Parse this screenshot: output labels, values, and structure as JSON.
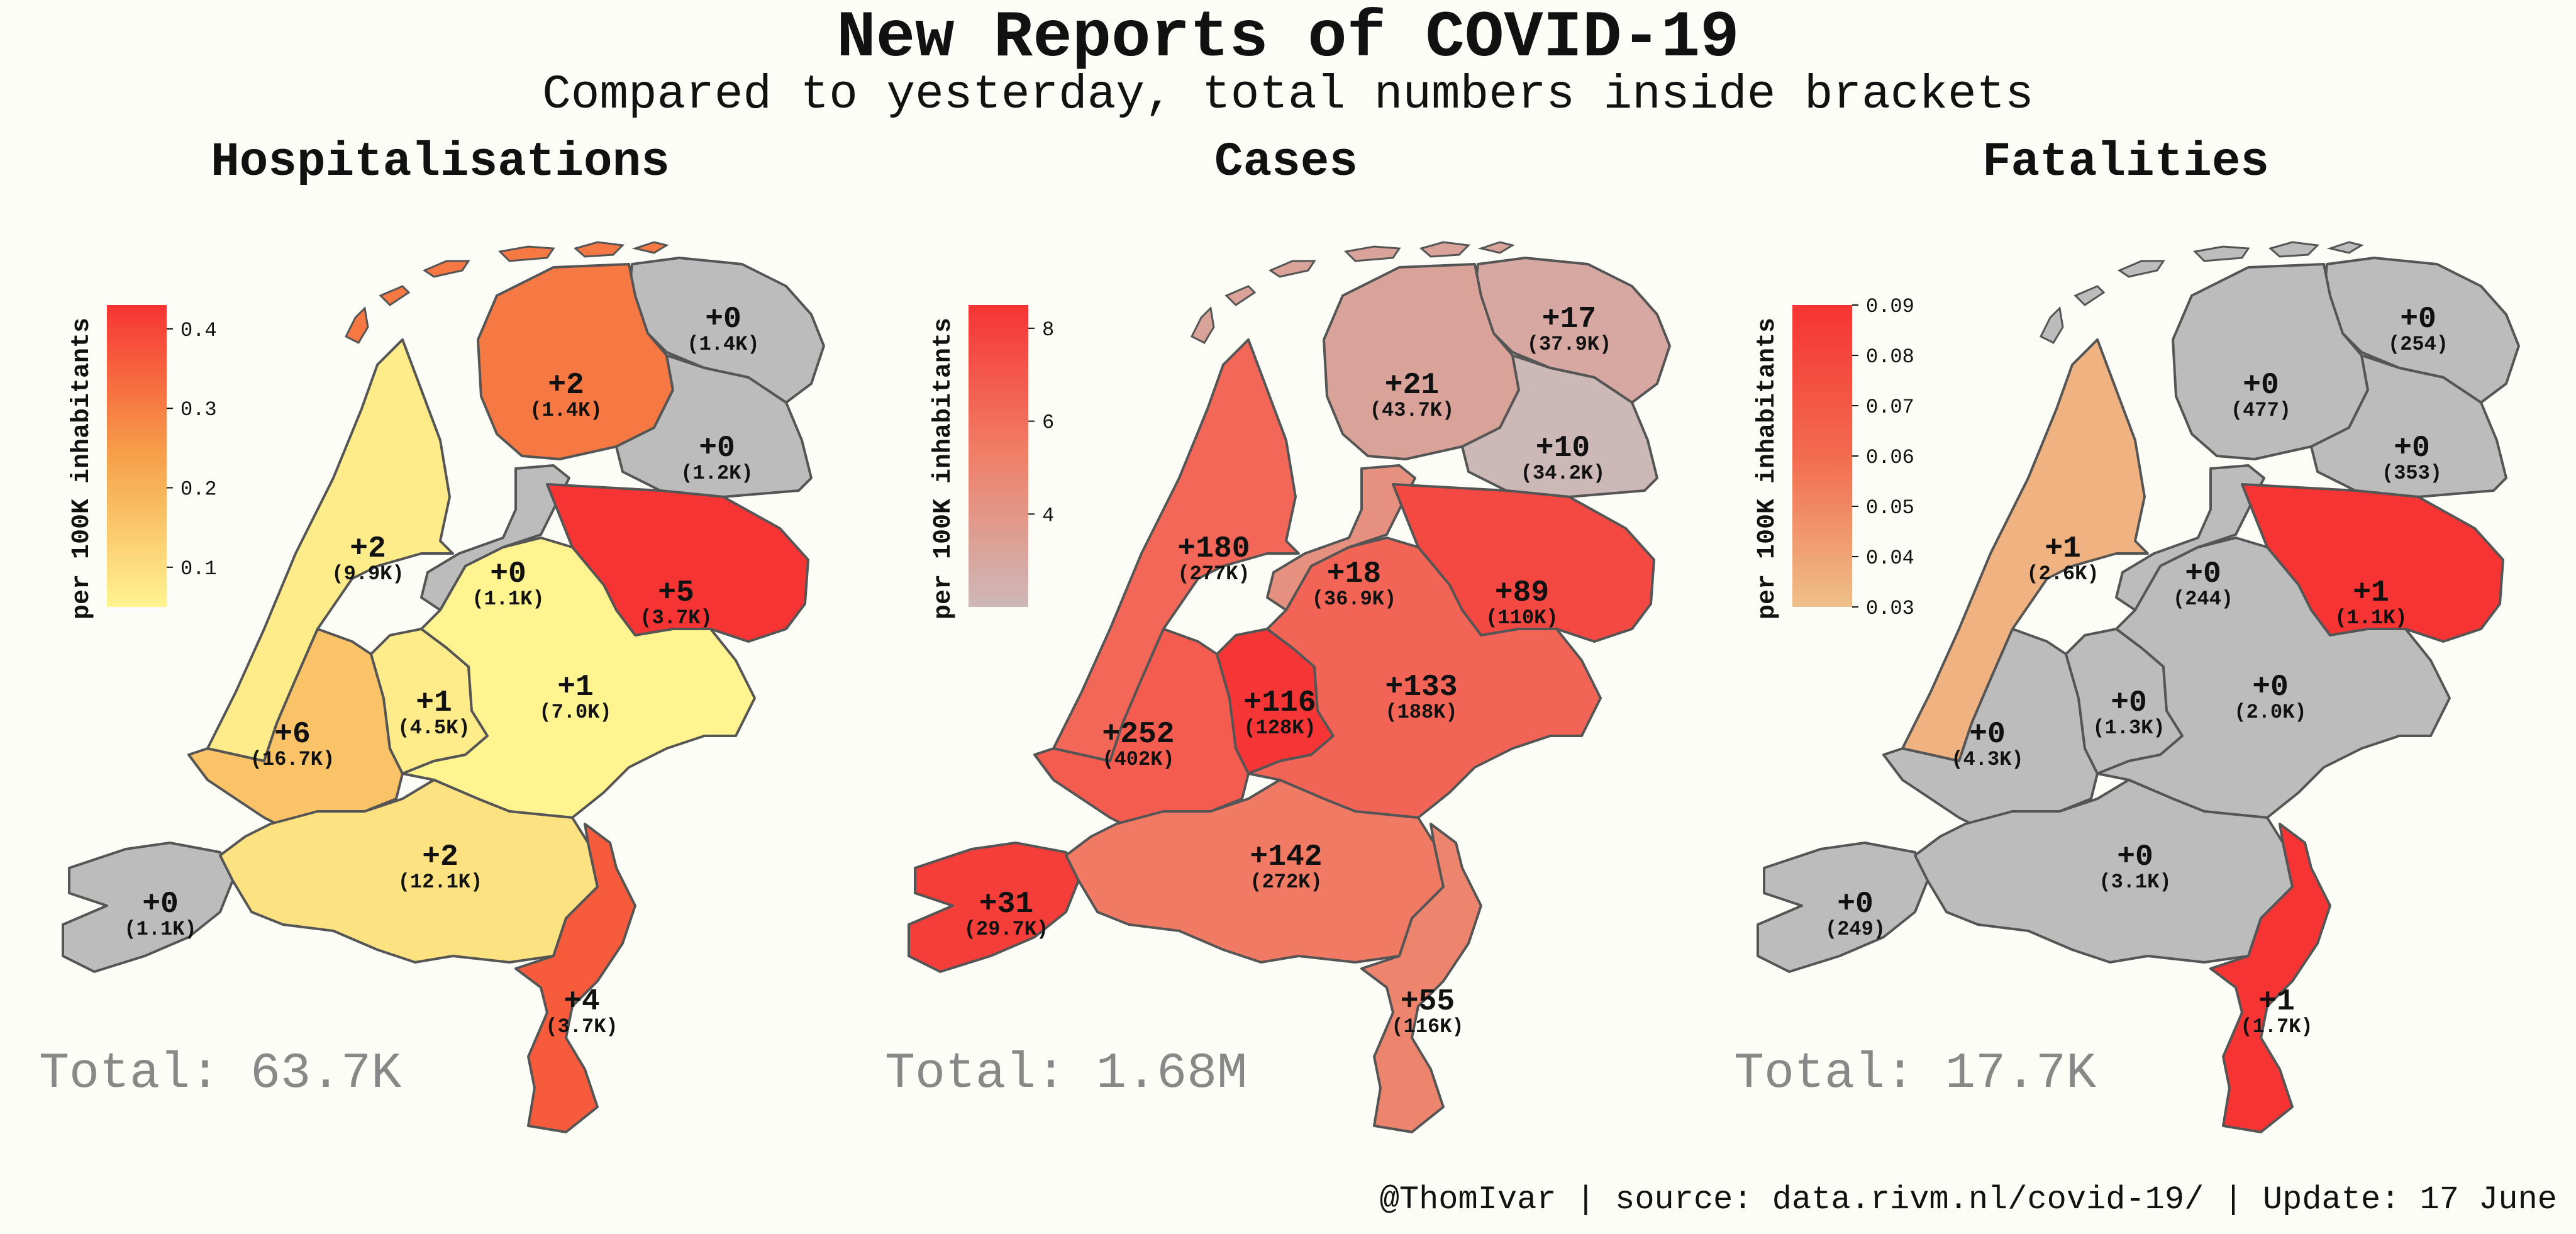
{
  "header": {
    "title": "New Reports of COVID-19",
    "subtitle": "Compared to yesterday, total numbers inside brackets"
  },
  "footer": {
    "credits": "@ThomIvar | source: data.rivm.nl/covid-19/ | Update: 17 June"
  },
  "colors": {
    "map_low_yellow": "#fff490",
    "map_mid_orange": "#f6a04a",
    "map_high_red": "#f63434",
    "pink_low": "#cdb8b8",
    "tan_low": "#eec08a",
    "zero_grey": "#bcbcbc",
    "border": "#555555",
    "background": "#fdfdf8"
  },
  "regions": [
    "Groningen",
    "Friesland",
    "Drenthe",
    "Noord-Holland",
    "Flevoland",
    "Overijssel",
    "Zuid-Holland",
    "Utrecht",
    "Gelderland",
    "Zeeland",
    "Noord-Brabant",
    "Limburg"
  ],
  "chart_data": [
    {
      "type": "choropleth",
      "title": "Hospitalisations",
      "colorbar": {
        "label": "per 100K inhabitants",
        "ticks": [
          "0.4",
          "0.3",
          "0.2",
          "0.1"
        ],
        "range": [
          0.05,
          0.43
        ],
        "colors": [
          "#fff490",
          "#f6a04a",
          "#f63434"
        ]
      },
      "total": "Total: 63.7K",
      "values": [
        {
          "region": "Groningen",
          "new": "+0",
          "total": "(1.4K)",
          "per100k": 0
        },
        {
          "region": "Friesland",
          "new": "+2",
          "total": "(1.4K)",
          "per100k": 0.31
        },
        {
          "region": "Drenthe",
          "new": "+0",
          "total": "(1.2K)",
          "per100k": 0
        },
        {
          "region": "Noord-Holland",
          "new": "+2",
          "total": "(9.9K)",
          "per100k": 0.07
        },
        {
          "region": "Flevoland",
          "new": "+0",
          "total": "(1.1K)",
          "per100k": 0
        },
        {
          "region": "Overijssel",
          "new": "+5",
          "total": "(3.7K)",
          "per100k": 0.43
        },
        {
          "region": "Zuid-Holland",
          "new": "+6",
          "total": "(16.7K)",
          "per100k": 0.16
        },
        {
          "region": "Utrecht",
          "new": "+1",
          "total": "(4.5K)",
          "per100k": 0.07
        },
        {
          "region": "Gelderland",
          "new": "+1",
          "total": "(7.0K)",
          "per100k": 0.05
        },
        {
          "region": "Zeeland",
          "new": "+0",
          "total": "(1.1K)",
          "per100k": 0
        },
        {
          "region": "Noord-Brabant",
          "new": "+2",
          "total": "(12.1K)",
          "per100k": 0.09
        },
        {
          "region": "Limburg",
          "new": "+4",
          "total": "(3.7K)",
          "per100k": 0.36
        }
      ]
    },
    {
      "type": "choropleth",
      "title": "Cases",
      "colorbar": {
        "label": "per 100K inhabitants",
        "ticks": [
          "8",
          "6",
          "4"
        ],
        "range": [
          2.0,
          8.5
        ],
        "colors": [
          "#cdb8b8",
          "#f08068",
          "#f63434"
        ]
      },
      "total": "Total: 1.68M",
      "values": [
        {
          "region": "Groningen",
          "new": "+17",
          "total": "(37.9K)",
          "per100k": 2.9
        },
        {
          "region": "Friesland",
          "new": "+21",
          "total": "(43.7K)",
          "per100k": 3.2
        },
        {
          "region": "Drenthe",
          "new": "+10",
          "total": "(34.2K)",
          "per100k": 2.0
        },
        {
          "region": "Noord-Holland",
          "new": "+180",
          "total": "(277K)",
          "per100k": 6.3
        },
        {
          "region": "Flevoland",
          "new": "+18",
          "total": "(36.9K)",
          "per100k": 4.3
        },
        {
          "region": "Overijssel",
          "new": "+89",
          "total": "(110K)",
          "per100k": 7.6
        },
        {
          "region": "Zuid-Holland",
          "new": "+252",
          "total": "(402K)",
          "per100k": 6.8
        },
        {
          "region": "Utrecht",
          "new": "+116",
          "total": "(128K)",
          "per100k": 8.4
        },
        {
          "region": "Gelderland",
          "new": "+133",
          "total": "(188K)",
          "per100k": 6.4
        },
        {
          "region": "Zeeland",
          "new": "+31",
          "total": "(29.7K)",
          "per100k": 8.1
        },
        {
          "region": "Noord-Brabant",
          "new": "+142",
          "total": "(272K)",
          "per100k": 5.5
        },
        {
          "region": "Limburg",
          "new": "+55",
          "total": "(116K)",
          "per100k": 5.0
        }
      ]
    },
    {
      "type": "choropleth",
      "title": "Fatalities",
      "colorbar": {
        "label": "per 100K inhabitants",
        "ticks": [
          "0.09",
          "0.08",
          "0.07",
          "0.06",
          "0.05",
          "0.04",
          "0.03"
        ],
        "range": [
          0.03,
          0.09
        ],
        "colors": [
          "#eec08a",
          "#f26b4f",
          "#f63434"
        ]
      },
      "total": "Total: 17.7K",
      "values": [
        {
          "region": "Groningen",
          "new": "+0",
          "total": "(254)",
          "per100k": 0
        },
        {
          "region": "Friesland",
          "new": "+0",
          "total": "(477)",
          "per100k": 0
        },
        {
          "region": "Drenthe",
          "new": "+0",
          "total": "(353)",
          "per100k": 0
        },
        {
          "region": "Noord-Holland",
          "new": "+1",
          "total": "(2.6K)",
          "per100k": 0.035
        },
        {
          "region": "Flevoland",
          "new": "+0",
          "total": "(244)",
          "per100k": 0
        },
        {
          "region": "Overijssel",
          "new": "+1",
          "total": "(1.1K)",
          "per100k": 0.09
        },
        {
          "region": "Zuid-Holland",
          "new": "+0",
          "total": "(4.3K)",
          "per100k": 0
        },
        {
          "region": "Utrecht",
          "new": "+0",
          "total": "(1.3K)",
          "per100k": 0
        },
        {
          "region": "Gelderland",
          "new": "+0",
          "total": "(2.0K)",
          "per100k": 0
        },
        {
          "region": "Zeeland",
          "new": "+0",
          "total": "(249)",
          "per100k": 0
        },
        {
          "region": "Noord-Brabant",
          "new": "+0",
          "total": "(3.1K)",
          "per100k": 0
        },
        {
          "region": "Limburg",
          "new": "+1",
          "total": "(1.7K)",
          "per100k": 0.09
        }
      ]
    }
  ]
}
